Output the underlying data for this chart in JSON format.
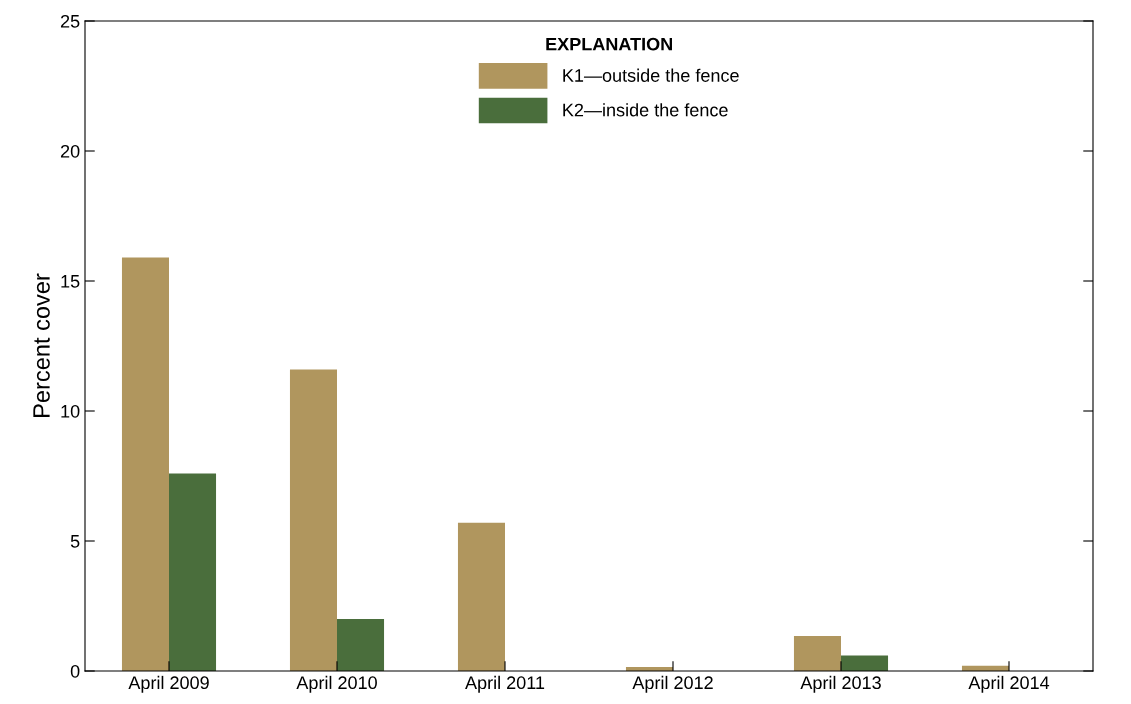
{
  "chart_data": {
    "type": "bar",
    "ylabel": "Percent cover",
    "legend_title": "EXPLANATION",
    "categories": [
      "April 2009",
      "April 2010",
      "April 2011",
      "April 2012",
      "April 2013",
      "April 2014"
    ],
    "series": [
      {
        "name": "K1—outside the fence",
        "color": "#b0965e",
        "values": [
          15.9,
          11.6,
          5.7,
          0.15,
          1.35,
          0.2
        ]
      },
      {
        "name": "K2—inside the fence",
        "color": "#4a6e3c",
        "values": [
          7.6,
          2.0,
          0,
          0,
          0.6,
          0
        ]
      }
    ],
    "ylim": [
      0,
      25
    ],
    "yticks": [
      0,
      5,
      10,
      15,
      20,
      25
    ],
    "grid": false,
    "legend": "top"
  }
}
